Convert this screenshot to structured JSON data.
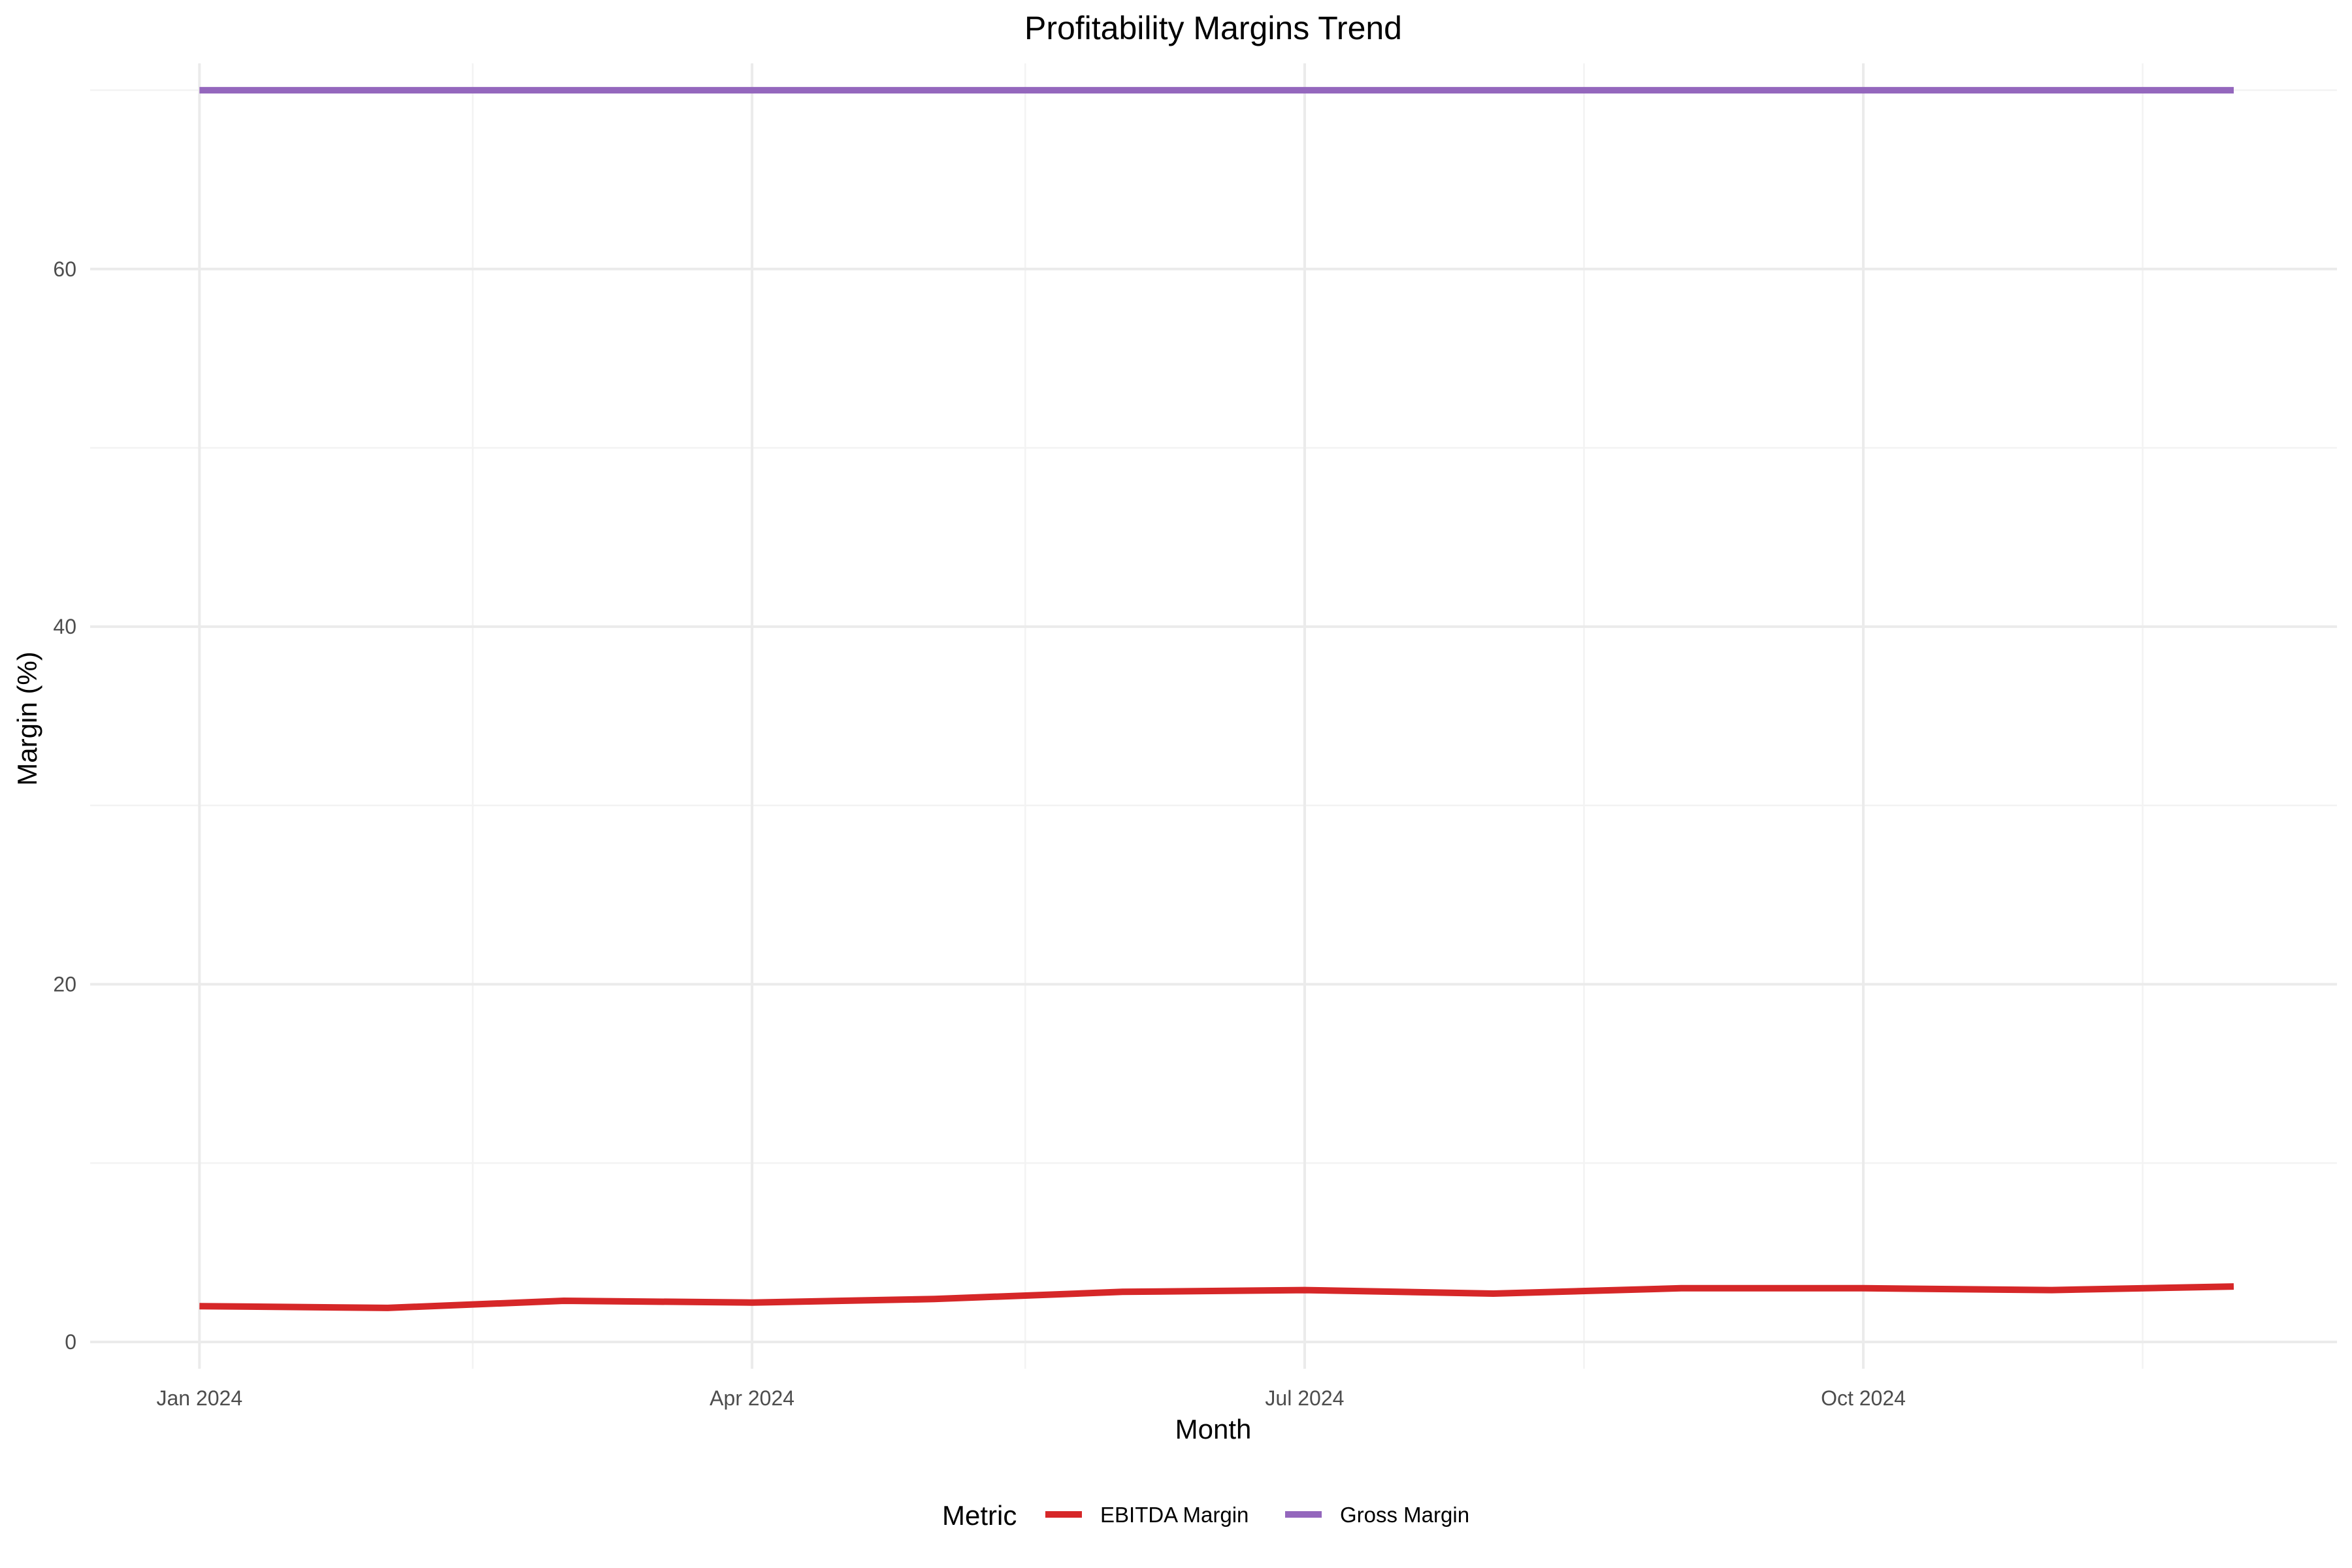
{
  "chart_data": {
    "type": "line",
    "title": "Profitability Margins Trend",
    "xlabel": "Month",
    "ylabel": "Margin (%)",
    "x": [
      "2024-01",
      "2024-02",
      "2024-03",
      "2024-04",
      "2024-05",
      "2024-06",
      "2024-07",
      "2024-08",
      "2024-09",
      "2024-10",
      "2024-11",
      "2024-12"
    ],
    "x_ticks": [
      {
        "value": "2024-01",
        "label": "Jan 2024"
      },
      {
        "value": "2024-04",
        "label": "Apr 2024"
      },
      {
        "value": "2024-07",
        "label": "Jul 2024"
      },
      {
        "value": "2024-10",
        "label": "Oct 2024"
      }
    ],
    "x_minor": [
      "2024-02-15",
      "2024-05-16",
      "2024-08-16",
      "2024-11-16"
    ],
    "x_range": [
      "2023-12-14",
      "2024-12-18"
    ],
    "y_ticks": [
      0,
      20,
      40,
      60
    ],
    "y_minor": [
      10,
      30,
      50,
      70
    ],
    "ylim": [
      -1.5,
      71.5
    ],
    "grid": true,
    "legend": {
      "title": "Metric",
      "position": "bottom"
    },
    "series": [
      {
        "name": "EBITDA Margin",
        "color": "#d62728",
        "values": [
          2.0,
          1.9,
          2.3,
          2.2,
          2.4,
          2.8,
          2.9,
          2.7,
          3.0,
          3.0,
          2.9,
          3.1
        ]
      },
      {
        "name": "Gross Margin",
        "color": "#9467bd",
        "values": [
          70.0,
          70.0,
          70.0,
          70.0,
          70.0,
          70.0,
          70.0,
          70.0,
          70.0,
          70.0,
          70.0,
          70.0
        ]
      }
    ]
  }
}
